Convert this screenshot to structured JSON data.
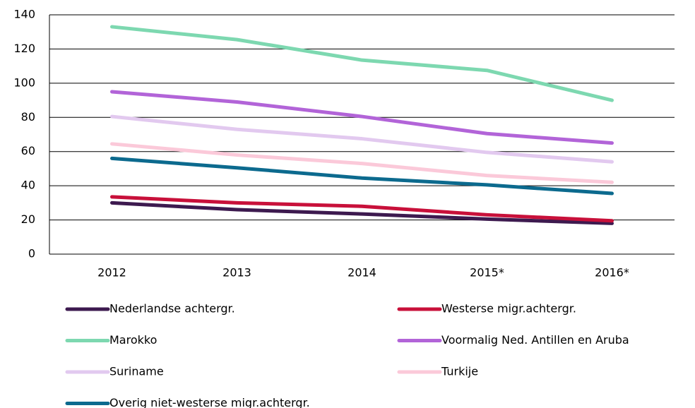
{
  "chart_data": {
    "type": "line",
    "categories": [
      "2012",
      "2013",
      "2014",
      "2015*",
      "2016*"
    ],
    "series": [
      {
        "name": "Nederlandse achtergr.",
        "color": "#3d1a4f",
        "values": [
          30,
          26,
          23.5,
          20.5,
          18
        ]
      },
      {
        "name": "Westerse migr.achtergr.",
        "color": "#c8103a",
        "values": [
          33.5,
          30,
          28,
          23,
          19.5
        ]
      },
      {
        "name": "Marokko",
        "color": "#7dd8b0",
        "values": [
          133,
          125.5,
          113.5,
          107.5,
          90
        ]
      },
      {
        "name": "Voormalig Ned. Antillen en Aruba",
        "color": "#b264d8",
        "values": [
          95,
          89,
          80.5,
          70.5,
          65
        ]
      },
      {
        "name": "Suriname",
        "color": "#e2c9ef",
        "values": [
          80.5,
          73,
          67.5,
          59.5,
          54
        ]
      },
      {
        "name": "Turkije",
        "color": "#fbc9d9",
        "values": [
          64.5,
          58,
          53,
          46,
          42
        ]
      },
      {
        "name": "Overig niet-westerse migr.achtergr.",
        "color": "#0c6a8e",
        "values": [
          56,
          50.5,
          44.5,
          40.5,
          35.5
        ]
      }
    ],
    "ylim": [
      0,
      140
    ],
    "yticks": [
      0,
      20,
      40,
      60,
      80,
      100,
      120,
      140
    ],
    "grid": true,
    "legend": "bottom"
  }
}
